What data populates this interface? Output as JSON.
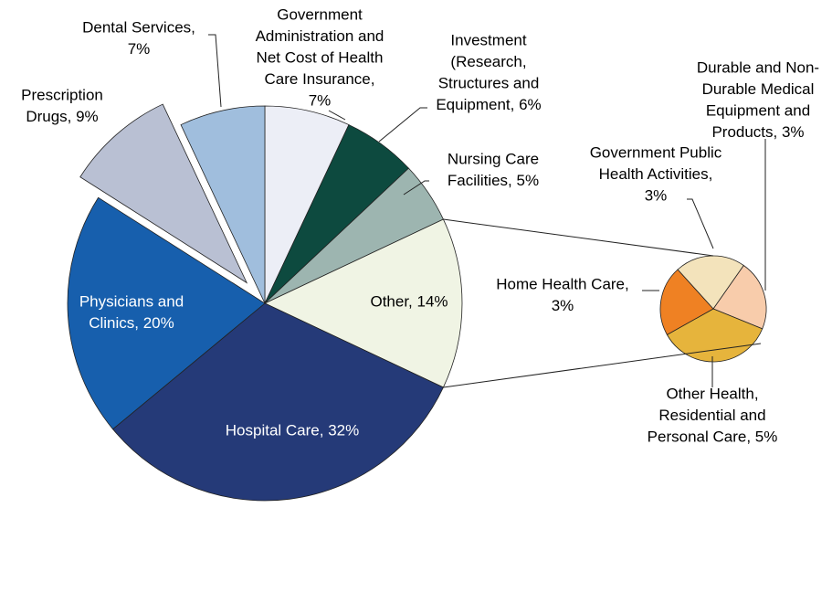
{
  "chart_data": {
    "type": "pie-of-pie",
    "labels": [
      [
        "Government",
        "Administration and",
        "Net Cost of Health",
        "Care Insurance,",
        "7%"
      ],
      [
        "Investment",
        "(Research,",
        "Structures and",
        "Equipment, 6%"
      ],
      [
        "Nursing Care",
        "Facilities, 5%"
      ],
      [
        "Other, 14%"
      ],
      [
        "Hospital Care, 32%"
      ],
      [
        "Physicians and",
        "Clinics, 20%"
      ],
      [
        "Prescription",
        "Drugs, 9%"
      ],
      [
        "Dental Services,",
        "7%"
      ]
    ],
    "values": [
      7,
      6,
      5,
      14,
      32,
      20,
      9,
      7
    ],
    "colors": [
      "#eceef6",
      "#0d4a3f",
      "#9db5b0",
      "#f0f4e4",
      "#253a78",
      "#175fad",
      "#b9c0d3",
      "#a0bedd"
    ],
    "exploded": [
      false,
      false,
      false,
      false,
      false,
      false,
      true,
      false
    ],
    "sub_labels": [
      [
        "Durable and Non-",
        "Durable Medical",
        "Equipment and",
        "Products, 3%"
      ],
      [
        "Other Health,",
        "Residential and",
        "Personal Care, 5%"
      ],
      [
        "Home Health Care,",
        "3%"
      ],
      [
        "Government Public",
        "Health Activities,",
        "3%"
      ]
    ],
    "sub_values": [
      3,
      5,
      3,
      3
    ],
    "sub_colors": [
      "#f8ccab",
      "#e6b43c",
      "#ef8123",
      "#f3e3bb"
    ]
  }
}
